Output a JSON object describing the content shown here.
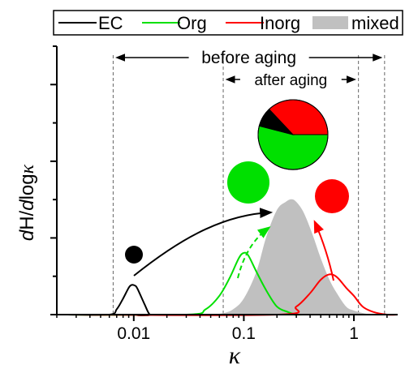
{
  "chart_data": {
    "type": "line",
    "title": "",
    "xlabel": "κ",
    "ylabel_prefix": "d",
    "ylabel_mid": "H/",
    "ylabel_d2": "d",
    "ylabel_log": "log",
    "ylabel_kappa": "κ",
    "xscale": "log",
    "xlim": [
      0.002,
      2.5
    ],
    "ylim": [
      0,
      1
    ],
    "grid": false,
    "legend_position": "top",
    "x_ticks": [
      {
        "value": 0.01,
        "label": "0.01"
      },
      {
        "value": 0.1,
        "label": "0.1"
      },
      {
        "value": 1,
        "label": "1"
      }
    ],
    "legend": [
      {
        "name": "EC",
        "kind": "line",
        "color": "#000000"
      },
      {
        "name": "Org",
        "kind": "line",
        "color": "#00e000"
      },
      {
        "name": "Inorg",
        "kind": "line",
        "color": "#ff0000"
      },
      {
        "name": "mixed",
        "kind": "area",
        "color": "#c0c0c0"
      }
    ],
    "series": [
      {
        "name": "EC",
        "color": "#000000",
        "x": [
          0.0025,
          0.006,
          0.007,
          0.008,
          0.009,
          0.0095,
          0.01,
          0.0105,
          0.011,
          0.0125,
          0.014,
          0.016,
          2.5
        ],
        "y": [
          0.0,
          0.0,
          0.02,
          0.06,
          0.1,
          0.11,
          0.11,
          0.105,
          0.09,
          0.04,
          0.0,
          0.0,
          0.0
        ]
      },
      {
        "name": "Org",
        "color": "#00e000",
        "x": [
          0.0025,
          0.03,
          0.045,
          0.06,
          0.075,
          0.09,
          0.1,
          0.11,
          0.13,
          0.16,
          0.2,
          0.25,
          0.3,
          0.35,
          2.5
        ],
        "y": [
          0.0,
          0.0,
          0.02,
          0.07,
          0.14,
          0.21,
          0.23,
          0.22,
          0.16,
          0.09,
          0.03,
          0.01,
          0.0,
          0.0,
          0.0
        ]
      },
      {
        "name": "Inorg",
        "color": "#ff0000",
        "x": [
          0.0025,
          0.2,
          0.3,
          0.4,
          0.5,
          0.6,
          0.7,
          0.85,
          1.0,
          1.2,
          1.5,
          2.0,
          2.5
        ],
        "y": [
          0.0,
          0.0,
          0.03,
          0.08,
          0.13,
          0.15,
          0.14,
          0.1,
          0.07,
          0.03,
          0.01,
          0.0,
          0.0
        ]
      },
      {
        "name": "mixed",
        "color": "#c0c0c0",
        "fill": true,
        "x": [
          0.05,
          0.065,
          0.08,
          0.1,
          0.13,
          0.16,
          0.2,
          0.24,
          0.27,
          0.3,
          0.35,
          0.42,
          0.5,
          0.6,
          0.7,
          0.85,
          1.0,
          1.3,
          1.6
        ],
        "y": [
          0.0,
          0.005,
          0.02,
          0.06,
          0.16,
          0.29,
          0.39,
          0.42,
          0.43,
          0.42,
          0.38,
          0.3,
          0.21,
          0.13,
          0.08,
          0.03,
          0.015,
          0.003,
          0.0
        ]
      }
    ],
    "annotations": [
      {
        "label": "before aging",
        "x_from": 0.0065,
        "x_to": 1.9
      },
      {
        "label": "after aging",
        "x_from": 0.065,
        "x_to": 1.1
      }
    ],
    "dashed_lines_x": [
      0.0065,
      0.065,
      1.1,
      1.9
    ],
    "pie": {
      "slices": [
        {
          "name": "Org",
          "fraction": 0.54,
          "color": "#00e000"
        },
        {
          "name": "EC",
          "fraction": 0.09,
          "color": "#000000"
        },
        {
          "name": "Inorg",
          "fraction": 0.37,
          "color": "#ff0000"
        }
      ]
    },
    "particles": [
      {
        "name": "EC",
        "color": "#000000"
      },
      {
        "name": "Org",
        "color": "#00e000"
      },
      {
        "name": "Inorg",
        "color": "#ff0000"
      }
    ]
  }
}
